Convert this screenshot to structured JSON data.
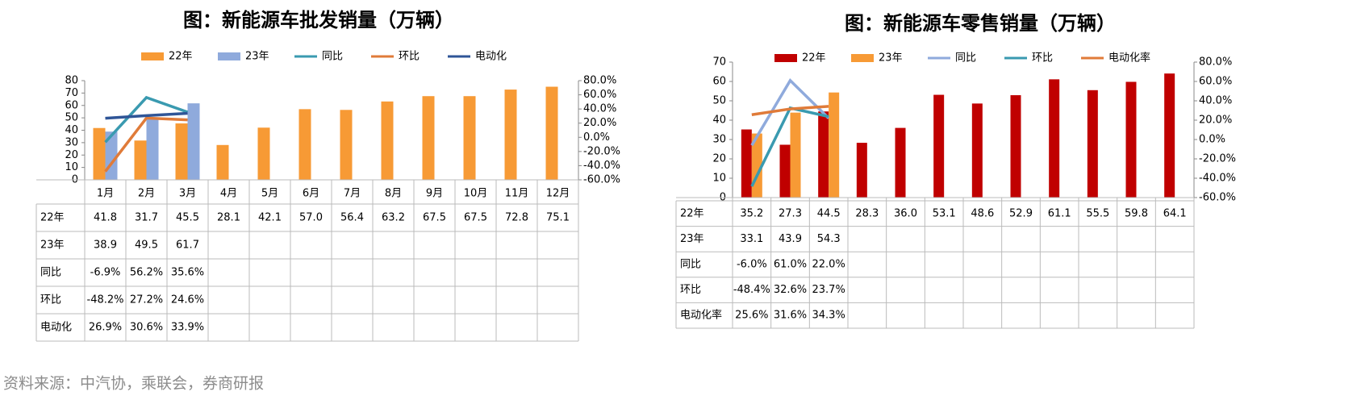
{
  "chart_data": [
    {
      "type": "combo",
      "title": "图：新能源车批发销量（万辆）",
      "categories": [
        "1月",
        "2月",
        "3月",
        "4月",
        "5月",
        "6月",
        "7月",
        "8月",
        "9月",
        "10月",
        "11月",
        "12月"
      ],
      "ylim": [
        0,
        80
      ],
      "yticks": [
        0,
        10,
        20,
        30,
        40,
        50,
        60,
        70,
        80
      ],
      "y2lim": [
        -60,
        80
      ],
      "y2ticks": [
        {
          "value": -60,
          "label": "-60.0%"
        },
        {
          "value": -40,
          "label": "-40.0%"
        },
        {
          "value": -20,
          "label": "-20.0%"
        },
        {
          "value": 0,
          "label": "0.0%"
        },
        {
          "value": 20,
          "label": "20.0%"
        },
        {
          "value": 40,
          "label": "40.0%"
        },
        {
          "value": 60,
          "label": "60.0%"
        },
        {
          "value": 80,
          "label": "80.0%"
        }
      ],
      "series": [
        {
          "name": "22年",
          "type": "bar",
          "color": "#f79a35",
          "values": [
            41.8,
            31.7,
            45.5,
            28.1,
            42.1,
            57.0,
            56.4,
            63.2,
            67.5,
            67.5,
            72.8,
            75.1
          ],
          "value_labels": [
            "41.8",
            "31.7",
            "45.5",
            "28.1",
            "42.1",
            "57.0",
            "56.4",
            "63.2",
            "67.5",
            "67.5",
            "72.8",
            "75.1"
          ]
        },
        {
          "name": "23年",
          "type": "bar",
          "color": "#8faadc",
          "values": [
            38.9,
            49.5,
            61.7,
            null,
            null,
            null,
            null,
            null,
            null,
            null,
            null,
            null
          ],
          "value_labels": [
            "38.9",
            "49.5",
            "61.7",
            null,
            null,
            null,
            null,
            null,
            null,
            null,
            null,
            null
          ]
        },
        {
          "name": "同比",
          "type": "line",
          "axis": "y2",
          "color": "#3a9ab0",
          "values": [
            -6.9,
            56.2,
            35.6,
            null,
            null,
            null,
            null,
            null,
            null,
            null,
            null,
            null
          ],
          "value_labels": [
            "-6.9%",
            "56.2%",
            "35.6%",
            null,
            null,
            null,
            null,
            null,
            null,
            null,
            null,
            null
          ]
        },
        {
          "name": "环比",
          "type": "line",
          "axis": "y2",
          "color": "#e07b39",
          "values": [
            -48.2,
            27.2,
            24.6,
            null,
            null,
            null,
            null,
            null,
            null,
            null,
            null,
            null
          ],
          "value_labels": [
            "-48.2%",
            "27.2%",
            "24.6%",
            null,
            null,
            null,
            null,
            null,
            null,
            null,
            null,
            null
          ]
        },
        {
          "name": "电动化",
          "type": "line",
          "axis": "y2",
          "color": "#2f5597",
          "values": [
            26.9,
            30.6,
            33.9,
            null,
            null,
            null,
            null,
            null,
            null,
            null,
            null,
            null
          ],
          "value_labels": [
            "26.9%",
            "30.6%",
            "33.9%",
            null,
            null,
            null,
            null,
            null,
            null,
            null,
            null,
            null
          ]
        }
      ]
    },
    {
      "type": "combo",
      "title": "图：新能源车零售销量（万辆）",
      "ylim": [
        0,
        70
      ],
      "yticks": [
        0,
        10,
        20,
        30,
        40,
        50,
        60,
        70
      ],
      "y2lim": [
        -60,
        80
      ],
      "y2ticks": [
        {
          "value": -60,
          "label": "-60.0%"
        },
        {
          "value": -40,
          "label": "-40.0%"
        },
        {
          "value": -20,
          "label": "-20.0%"
        },
        {
          "value": 0,
          "label": "0.0%"
        },
        {
          "value": 20,
          "label": "20.0%"
        },
        {
          "value": 40,
          "label": "40.0%"
        },
        {
          "value": 60,
          "label": "60.0%"
        },
        {
          "value": 80,
          "label": "80.0%"
        }
      ],
      "series": [
        {
          "name": "22年",
          "type": "bar",
          "color": "#c00000",
          "values": [
            35.2,
            27.3,
            44.5,
            28.3,
            36.0,
            53.1,
            48.6,
            52.9,
            61.1,
            55.5,
            59.8,
            64.1
          ],
          "value_labels": [
            "35.2",
            "27.3",
            "44.5",
            "28.3",
            "36.0",
            "53.1",
            "48.6",
            "52.9",
            "61.1",
            "55.5",
            "59.8",
            "64.1"
          ]
        },
        {
          "name": "23年",
          "type": "bar",
          "color": "#f79a35",
          "values": [
            33.1,
            43.9,
            54.3,
            null,
            null,
            null,
            null,
            null,
            null,
            null,
            null,
            null
          ],
          "value_labels": [
            "33.1",
            "43.9",
            "54.3",
            null,
            null,
            null,
            null,
            null,
            null,
            null,
            null,
            null
          ]
        },
        {
          "name": "同比",
          "type": "line",
          "axis": "y2",
          "color": "#8faadc",
          "values": [
            -6.0,
            61.0,
            22.0,
            null,
            null,
            null,
            null,
            null,
            null,
            null,
            null,
            null
          ],
          "value_labels": [
            "-6.0%",
            "61.0%",
            "22.0%",
            null,
            null,
            null,
            null,
            null,
            null,
            null,
            null,
            null
          ]
        },
        {
          "name": "环比",
          "type": "line",
          "axis": "y2",
          "color": "#3a9ab0",
          "values": [
            -48.4,
            32.6,
            23.7,
            null,
            null,
            null,
            null,
            null,
            null,
            null,
            null,
            null
          ],
          "value_labels": [
            "-48.4%",
            "32.6%",
            "23.7%",
            null,
            null,
            null,
            null,
            null,
            null,
            null,
            null,
            null
          ]
        },
        {
          "name": "电动化率",
          "type": "line",
          "axis": "y2",
          "color": "#e07b39",
          "values": [
            25.6,
            31.6,
            34.3,
            null,
            null,
            null,
            null,
            null,
            null,
            null,
            null,
            null
          ],
          "value_labels": [
            "25.6%",
            "31.6%",
            "34.3%",
            null,
            null,
            null,
            null,
            null,
            null,
            null,
            null,
            null
          ]
        }
      ]
    }
  ],
  "source": "资料来源：中汽协，乘联会，券商研报"
}
